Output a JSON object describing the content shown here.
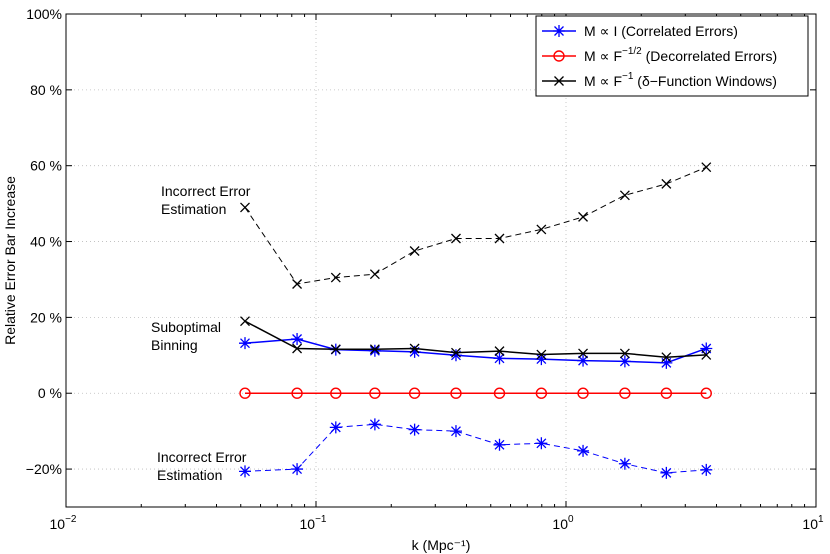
{
  "chart_data": {
    "type": "line",
    "xscale": "log",
    "xlim": [
      0.01,
      10
    ],
    "ylim": [
      -30,
      100
    ],
    "xlabel": "k (Mpc⁻¹)",
    "ylabel": "Relative Error Bar Increase",
    "grid": "dotted",
    "x_ticks": [
      {
        "value": 0.01,
        "base": "10",
        "exp": "−2"
      },
      {
        "value": 0.1,
        "base": "10",
        "exp": "−1"
      },
      {
        "value": 1,
        "base": "10",
        "exp": "0"
      },
      {
        "value": 10,
        "base": "10",
        "exp": "1"
      }
    ],
    "y_ticks": [
      {
        "value": -20,
        "label": "−20%"
      },
      {
        "value": 0,
        "label": "0 %"
      },
      {
        "value": 20,
        "label": "20 %"
      },
      {
        "value": 40,
        "label": "40 %"
      },
      {
        "value": 60,
        "label": "60 %"
      },
      {
        "value": 80,
        "label": "80 %"
      },
      {
        "value": 100,
        "label": "100%"
      }
    ],
    "x": [
      0.052,
      0.084,
      0.12,
      0.172,
      0.248,
      0.363,
      0.542,
      0.797,
      1.17,
      1.72,
      2.52,
      3.64
    ],
    "series": [
      {
        "name": "M ∝ I (Correlated Errors), solid",
        "color": "#0000ff",
        "marker": "asterisk",
        "dash": false,
        "values": [
          13.2,
          14.3,
          11.5,
          11.2,
          10.9,
          10.0,
          9.2,
          9.0,
          8.6,
          8.4,
          8.0,
          11.8
        ]
      },
      {
        "name": "M ∝ I (Correlated Errors), dashed",
        "color": "#0000ff",
        "marker": "asterisk",
        "dash": true,
        "values": [
          -20.6,
          -20.0,
          -9.0,
          -8.2,
          -9.6,
          -10.0,
          -13.6,
          -13.2,
          -15.2,
          -18.6,
          -21.0,
          -20.2
        ]
      },
      {
        "name": "M ∝ F^-1/2 (Decorrelated Errors)",
        "color": "#ff0000",
        "marker": "circle",
        "dash": false,
        "values": [
          0,
          0,
          0,
          0,
          0,
          0,
          0,
          0,
          0,
          0,
          0,
          0
        ]
      },
      {
        "name": "M ∝ F^-1 (δ-Function Windows), solid",
        "color": "#000000",
        "marker": "x",
        "dash": false,
        "values": [
          19.0,
          11.8,
          11.6,
          11.6,
          11.8,
          10.7,
          11.1,
          10.2,
          10.5,
          10.5,
          9.5,
          10.1
        ]
      },
      {
        "name": "M ∝ F^-1 (δ-Function Windows), dashed",
        "color": "#000000",
        "marker": "x",
        "dash": true,
        "values": [
          49.0,
          28.8,
          30.5,
          31.4,
          37.5,
          40.8,
          40.8,
          43.2,
          46.5,
          52.2,
          55.2,
          59.6
        ]
      }
    ],
    "legend": {
      "location": "top-right",
      "entries": [
        {
          "color": "#0000ff",
          "marker": "asterisk",
          "main": "M ∝ I",
          "sup": "",
          "tail": "(Correlated Errors)"
        },
        {
          "color": "#ff0000",
          "marker": "circle",
          "main": "M ∝ F",
          "sup": "−1/2",
          "tail": "(Decorrelated Errors)"
        },
        {
          "color": "#000000",
          "marker": "x",
          "main": "M ∝ F",
          "sup": "−1",
          "tail": "(δ−Function Windows)"
        }
      ]
    },
    "annotations": [
      {
        "lines": [
          "Incorrect Error",
          "Estimation"
        ],
        "near_x": 0.052,
        "near_y": 49
      },
      {
        "lines": [
          "Suboptimal",
          "Binning"
        ],
        "near_x": 0.052,
        "near_y": 17
      },
      {
        "lines": [
          "Incorrect Error",
          "Estimation"
        ],
        "near_x": 0.052,
        "near_y": -19
      }
    ]
  }
}
